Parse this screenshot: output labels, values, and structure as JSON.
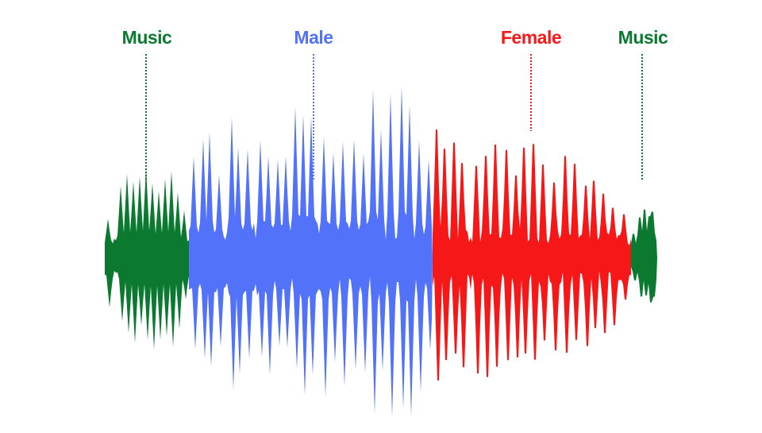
{
  "colors": {
    "music": "#0b7a30",
    "male": "#5272fa",
    "female": "#f61818",
    "background": "#ffffff"
  },
  "segments": [
    {
      "id": "music-1",
      "label": "Music",
      "color_key": "music"
    },
    {
      "id": "male",
      "label": "Male",
      "color_key": "male"
    },
    {
      "id": "female",
      "label": "Female",
      "color_key": "female"
    },
    {
      "id": "music-2",
      "label": "Music",
      "color_key": "music"
    }
  ]
}
